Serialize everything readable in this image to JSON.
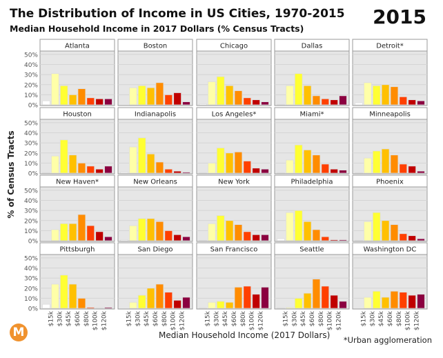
{
  "title": "The Distribution of Income in US Cities, 1970-2015",
  "subtitle": "Median Household Income in 2017 Dollars (% Census Tracts)",
  "year": "2015",
  "footnote": "*Urban agglomeration",
  "logo": "M",
  "chart_data": {
    "type": "bar",
    "xlabel": "Median Household Income (2017 Dollars)",
    "ylabel": "% of Census Tracts",
    "ylim": [
      0,
      50
    ],
    "yticks": [
      "0%",
      "10%",
      "20%",
      "30%",
      "40%",
      "50%"
    ],
    "xticks": [
      "$15k",
      "$30k",
      "$45k",
      "$60k",
      "$80k",
      "$100k",
      "$120k"
    ],
    "grid": true,
    "colors": [
      "#ffffff",
      "#ffffa8",
      "#ffff33",
      "#ffc000",
      "#ff8c00",
      "#ff4000",
      "#c00000",
      "#8b0040"
    ],
    "panels": [
      {
        "name": "Atlanta",
        "values": [
          4,
          31,
          19,
          10,
          16,
          7,
          6,
          6
        ]
      },
      {
        "name": "Boston",
        "values": [
          0,
          17,
          19,
          17,
          22,
          10,
          12,
          3
        ]
      },
      {
        "name": "Chicago",
        "values": [
          1,
          23,
          28,
          19,
          14,
          7,
          5,
          3
        ]
      },
      {
        "name": "Dallas",
        "values": [
          0.5,
          19,
          31,
          19,
          9,
          6,
          5,
          9
        ]
      },
      {
        "name": "Detroit*",
        "values": [
          2,
          22,
          19,
          20,
          18,
          8,
          5,
          4
        ]
      },
      {
        "name": "Houston",
        "values": [
          0.5,
          17,
          33,
          18,
          10,
          7,
          4,
          7
        ]
      },
      {
        "name": "Indianapolis",
        "values": [
          1,
          26,
          35,
          19,
          11,
          4,
          2,
          1
        ]
      },
      {
        "name": "Los Angeles*",
        "values": [
          0.5,
          10,
          25,
          20,
          21,
          12,
          5,
          4
        ]
      },
      {
        "name": "Miami*",
        "values": [
          0.5,
          13,
          28,
          23,
          18,
          9,
          4,
          3
        ]
      },
      {
        "name": "Minneapolis",
        "values": [
          0.5,
          15,
          22,
          24,
          18,
          9,
          7,
          2
        ]
      },
      {
        "name": "New Haven*",
        "values": [
          0,
          11,
          17,
          17,
          26,
          15,
          9,
          4
        ]
      },
      {
        "name": "New Orleans",
        "values": [
          1,
          15,
          22,
          22,
          19,
          10,
          6,
          4
        ]
      },
      {
        "name": "New York",
        "values": [
          0.5,
          17,
          25,
          20,
          16,
          9,
          6,
          6
        ]
      },
      {
        "name": "Philadelphia",
        "values": [
          2,
          28,
          30,
          19,
          11,
          4,
          1,
          1
        ]
      },
      {
        "name": "Phoenix",
        "values": [
          0.5,
          19,
          28,
          20,
          16,
          7,
          5,
          2
        ]
      },
      {
        "name": "Pittsburgh",
        "values": [
          4,
          24,
          33,
          24,
          10,
          1,
          0.5,
          1
        ]
      },
      {
        "name": "San Diego",
        "values": [
          0,
          6,
          13,
          20,
          24,
          16,
          8,
          11
        ]
      },
      {
        "name": "San Francisco",
        "values": [
          0.5,
          6,
          7,
          6,
          21,
          22,
          14,
          21
        ]
      },
      {
        "name": "Seattle",
        "values": [
          0.5,
          1,
          10,
          15,
          29,
          22,
          13,
          7
        ]
      },
      {
        "name": "Washington DC",
        "values": [
          0,
          11,
          17,
          11,
          17,
          16,
          13,
          14
        ]
      }
    ]
  }
}
